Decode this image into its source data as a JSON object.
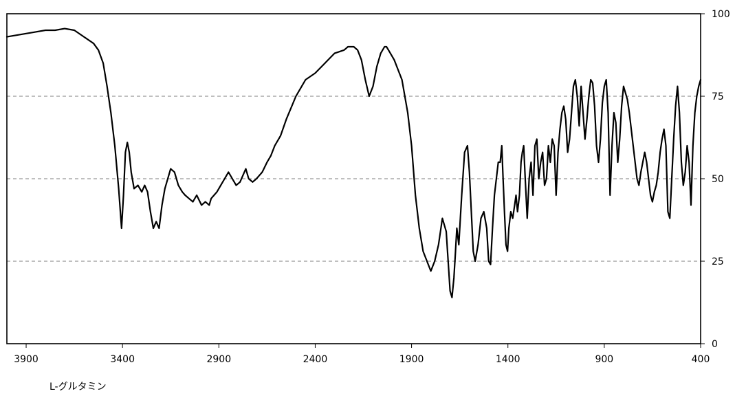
{
  "chart_data": {
    "type": "line",
    "title": "",
    "xlabel": "",
    "ylabel": "",
    "xlim": [
      4000,
      400
    ],
    "ylim": [
      0,
      100
    ],
    "x_ticks": [
      3900,
      3400,
      2900,
      2400,
      1900,
      1400,
      900,
      400
    ],
    "y_ticks": [
      0,
      25,
      50,
      75,
      100
    ],
    "grid": "horizontal dashed at 25, 50, 75",
    "caption": "L-グルタミン",
    "series": [
      {
        "line_color": "#000000",
        "x": [
          4000,
          3950,
          3900,
          3850,
          3800,
          3750,
          3700,
          3650,
          3600,
          3550,
          3525,
          3500,
          3480,
          3460,
          3440,
          3420,
          3405,
          3395,
          3385,
          3375,
          3365,
          3355,
          3340,
          3320,
          3300,
          3285,
          3270,
          3255,
          3240,
          3225,
          3210,
          3195,
          3180,
          3165,
          3150,
          3130,
          3110,
          3090,
          3075,
          3055,
          3035,
          3015,
          2990,
          2970,
          2950,
          2940,
          2925,
          2910,
          2890,
          2870,
          2850,
          2830,
          2810,
          2790,
          2775,
          2760,
          2745,
          2725,
          2705,
          2690,
          2675,
          2650,
          2630,
          2610,
          2580,
          2550,
          2500,
          2450,
          2400,
          2350,
          2300,
          2250,
          2230,
          2200,
          2180,
          2160,
          2140,
          2120,
          2100,
          2080,
          2060,
          2040,
          2030,
          2020,
          2010,
          1990,
          1970,
          1950,
          1920,
          1900,
          1880,
          1860,
          1840,
          1820,
          1800,
          1780,
          1760,
          1740,
          1720,
          1700,
          1690,
          1680,
          1672,
          1665,
          1655,
          1640,
          1625,
          1610,
          1600,
          1590,
          1580,
          1570,
          1555,
          1540,
          1525,
          1510,
          1500,
          1490,
          1480,
          1470,
          1460,
          1450,
          1440,
          1432,
          1425,
          1418,
          1410,
          1402,
          1395,
          1385,
          1375,
          1365,
          1358,
          1350,
          1340,
          1332,
          1325,
          1318,
          1310,
          1300,
          1290,
          1280,
          1270,
          1260,
          1250,
          1240,
          1230,
          1220,
          1210,
          1200,
          1190,
          1180,
          1170,
          1160,
          1150,
          1140,
          1130,
          1120,
          1110,
          1100,
          1090,
          1080,
          1070,
          1060,
          1050,
          1040,
          1030,
          1020,
          1010,
          1000,
          990,
          980,
          970,
          960,
          950,
          940,
          930,
          920,
          910,
          900,
          890,
          880,
          870,
          860,
          850,
          840,
          830,
          820,
          810,
          800,
          790,
          780,
          770,
          760,
          750,
          740,
          730,
          720,
          710,
          700,
          690,
          680,
          670,
          660,
          650,
          640,
          630,
          620,
          610,
          600,
          590,
          580,
          570,
          560,
          550,
          540,
          530,
          520,
          510,
          500,
          490,
          480,
          470,
          460,
          450,
          440,
          430,
          420,
          410,
          400
        ],
        "y": [
          93,
          93.5,
          94,
          94.5,
          95,
          95,
          95.5,
          95,
          93,
          91,
          89,
          85,
          78,
          70,
          60,
          47,
          35,
          45,
          58,
          61,
          58,
          52,
          47,
          48,
          46,
          48,
          46,
          40,
          35,
          37,
          35,
          42,
          47,
          50,
          53,
          52,
          48,
          46,
          45,
          44,
          43,
          45,
          42,
          43,
          42,
          44,
          45,
          46,
          48,
          50,
          52,
          50,
          48,
          49,
          51,
          53,
          50,
          49,
          50,
          51,
          52,
          55,
          57,
          60,
          63,
          68,
          75,
          80,
          82,
          85,
          88,
          89,
          90,
          90,
          89,
          86,
          80,
          75,
          78,
          84,
          88,
          90,
          90,
          89,
          88,
          86,
          83,
          80,
          70,
          60,
          45,
          35,
          28,
          25,
          22,
          25,
          30,
          38,
          34,
          16,
          14,
          20,
          28,
          35,
          30,
          45,
          58,
          60,
          52,
          40,
          28,
          25,
          30,
          38,
          40,
          35,
          25,
          24,
          35,
          45,
          50,
          55,
          55,
          60,
          50,
          40,
          30,
          28,
          35,
          40,
          38,
          42,
          45,
          40,
          45,
          55,
          58,
          60,
          50,
          38,
          50,
          55,
          45,
          60,
          62,
          50,
          55,
          58,
          48,
          50,
          60,
          55,
          62,
          60,
          45,
          58,
          65,
          70,
          72,
          68,
          58,
          62,
          70,
          78,
          80,
          75,
          66,
          78,
          70,
          62,
          68,
          75,
          80,
          79,
          72,
          60,
          55,
          62,
          73,
          78,
          80,
          70,
          45,
          60,
          70,
          67,
          55,
          62,
          72,
          78,
          76,
          74,
          70,
          65,
          60,
          55,
          50,
          48,
          52,
          55,
          58,
          55,
          50,
          45,
          43,
          46,
          48,
          52,
          58,
          62,
          65,
          60,
          40,
          38,
          50,
          62,
          72,
          78,
          70,
          55,
          48,
          52,
          60,
          55,
          42,
          60,
          70,
          75,
          78,
          80
        ]
      }
    ]
  }
}
